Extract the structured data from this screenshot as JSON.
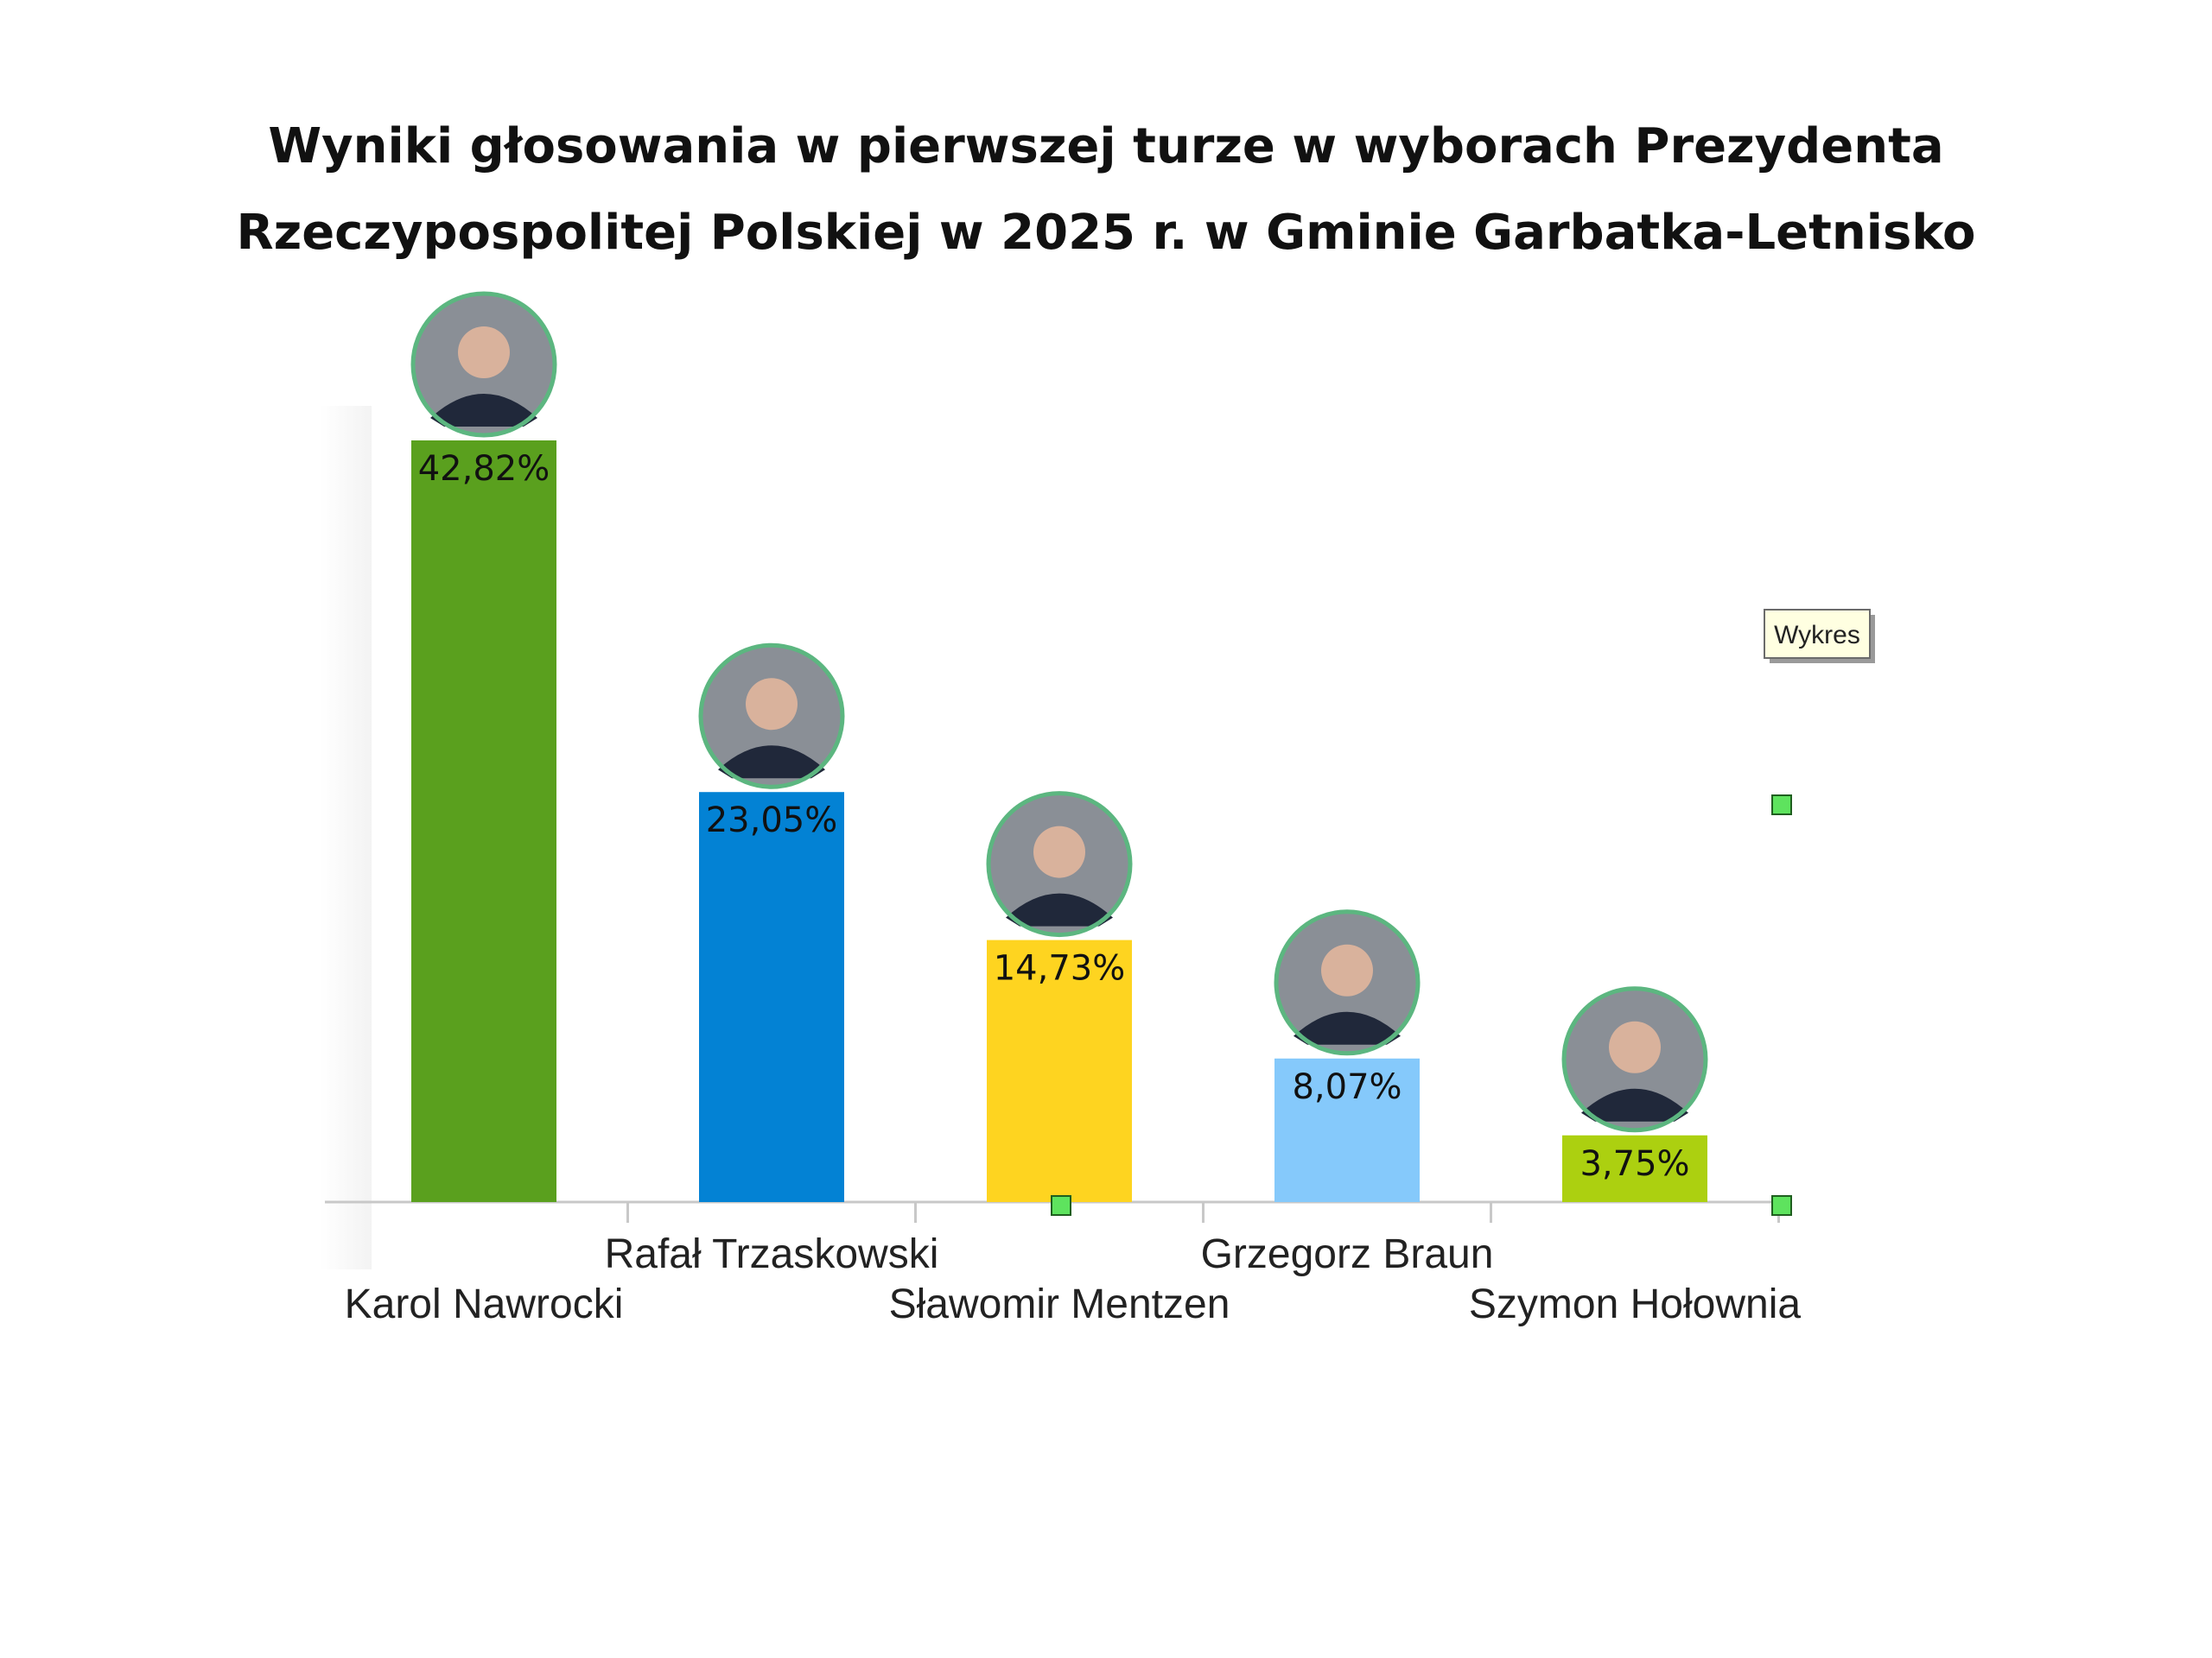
{
  "chart_data": {
    "type": "bar",
    "title": "Wyniki głosowania w pierwszej turze w wyborach Prezydenta Rzeczypospolitej Polskiej w 2025 r. w Gminie Garbatka-Letnisko",
    "title_lines": [
      "Wyniki głosowania w pierwszej turze w wyborach Prezydenta",
      "Rzeczypospolitej Polskiej w 2025 r. w Gminie Garbatka-Letnisko"
    ],
    "categories": [
      "Karol Nawrocki",
      "Rafał Trzaskowski",
      "Sławomir Mentzen",
      "Grzegorz Braun",
      "Szymon Hołownia"
    ],
    "values": [
      42.82,
      23.05,
      14.73,
      8.07,
      3.75
    ],
    "value_labels": [
      "42,82%",
      "23,05%",
      "14,73%",
      "8,07%",
      "3,75%"
    ],
    "colors": [
      "#5aa01e",
      "#0382d4",
      "#fed420",
      "#85c9fb",
      "#acd010"
    ],
    "candidate_photo_icons": [
      "portrait-icon",
      "portrait-icon",
      "portrait-icon",
      "portrait-icon",
      "portrait-icon"
    ],
    "photo_border_color": "#5cb680",
    "xlabel": "",
    "ylabel": "",
    "ylim": [
      0,
      42.82
    ],
    "grid": false,
    "legend": "none",
    "label_rows": "alternating"
  },
  "tooltip": {
    "text": "Wykres"
  },
  "selection_handle_color": "#5ee35e"
}
